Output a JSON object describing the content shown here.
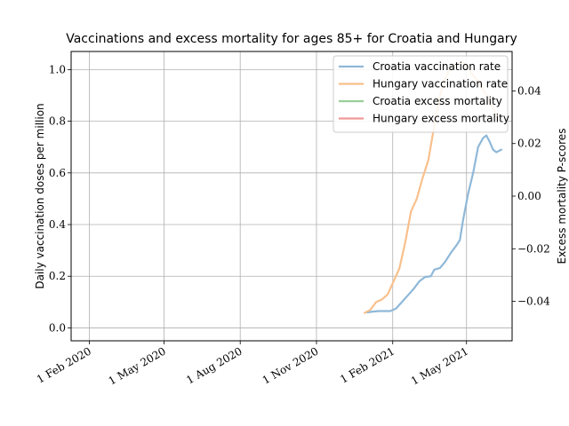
{
  "chart_data": {
    "type": "line",
    "title": "Vaccinations and excess mortality for ages 85+ for Croatia and Hungary",
    "ylabel": "Daily vaccination doses per million",
    "y2label": "Excess mortality P-scores",
    "xlim": [
      "2020-01-10",
      "2021-06-25"
    ],
    "ylim": [
      -0.05,
      1.07
    ],
    "y2lim": [
      -0.055,
      0.055
    ],
    "x_ticks": [
      {
        "date": "2020-02-01",
        "label": "1 Feb 2020"
      },
      {
        "date": "2020-05-01",
        "label": "1 May 2020"
      },
      {
        "date": "2020-08-01",
        "label": "1 Aug 2020"
      },
      {
        "date": "2020-11-01",
        "label": "1 Nov 2020"
      },
      {
        "date": "2021-02-01",
        "label": "1 Feb 2021"
      },
      {
        "date": "2021-05-01",
        "label": "1 May 2021"
      }
    ],
    "y_ticks": [
      "0.0",
      "0.2",
      "0.4",
      "0.6",
      "0.8",
      "1.0"
    ],
    "y2_ticks": [
      "−0.04",
      "−0.02",
      "0.00",
      "0.02",
      "0.04"
    ],
    "grid": true,
    "legend_position": "top-right",
    "series": [
      {
        "name": "Croatia vaccination rate",
        "color": "#8fb8d8",
        "axis": "left",
        "points": [
          [
            "2021-01-01",
            0.06
          ],
          [
            "2021-01-08",
            0.063
          ],
          [
            "2021-01-15",
            0.065
          ],
          [
            "2021-01-22",
            0.065
          ],
          [
            "2021-01-29",
            0.065
          ],
          [
            "2021-02-05",
            0.075
          ],
          [
            "2021-02-12",
            0.1
          ],
          [
            "2021-02-19",
            0.125
          ],
          [
            "2021-02-26",
            0.15
          ],
          [
            "2021-03-05",
            0.18
          ],
          [
            "2021-03-12",
            0.197
          ],
          [
            "2021-03-19",
            0.2
          ],
          [
            "2021-03-23",
            0.225
          ],
          [
            "2021-03-30",
            0.232
          ],
          [
            "2021-04-05",
            0.255
          ],
          [
            "2021-04-12",
            0.29
          ],
          [
            "2021-04-19",
            0.32
          ],
          [
            "2021-04-23",
            0.34
          ],
          [
            "2021-04-27",
            0.42
          ],
          [
            "2021-05-03",
            0.52
          ],
          [
            "2021-05-09",
            0.6
          ],
          [
            "2021-05-15",
            0.7
          ],
          [
            "2021-05-21",
            0.735
          ],
          [
            "2021-05-25",
            0.745
          ],
          [
            "2021-05-29",
            0.72
          ],
          [
            "2021-06-02",
            0.69
          ],
          [
            "2021-06-06",
            0.68
          ],
          [
            "2021-06-12",
            0.69
          ]
        ]
      },
      {
        "name": "Hungary vaccination rate",
        "color": "#f8c08c",
        "axis": "left",
        "points": [
          [
            "2020-12-29",
            0.058
          ],
          [
            "2021-01-05",
            0.07
          ],
          [
            "2021-01-12",
            0.1
          ],
          [
            "2021-01-19",
            0.11
          ],
          [
            "2021-01-26",
            0.13
          ],
          [
            "2021-02-02",
            0.18
          ],
          [
            "2021-02-09",
            0.23
          ],
          [
            "2021-02-16",
            0.33
          ],
          [
            "2021-02-23",
            0.45
          ],
          [
            "2021-03-02",
            0.5
          ],
          [
            "2021-03-09",
            0.58
          ],
          [
            "2021-03-16",
            0.65
          ],
          [
            "2021-03-23",
            0.78
          ],
          [
            "2021-03-30",
            0.9
          ],
          [
            "2021-04-06",
            0.97
          ],
          [
            "2021-04-13",
            1.01
          ],
          [
            "2021-04-20",
            1.02
          ],
          [
            "2021-04-27",
            1.03
          ],
          [
            "2021-05-04",
            1.0
          ],
          [
            "2021-05-11",
            0.97
          ],
          [
            "2021-05-18",
            0.94
          ],
          [
            "2021-05-25",
            0.9
          ],
          [
            "2021-06-01",
            0.86
          ],
          [
            "2021-06-08",
            0.81
          ]
        ]
      },
      {
        "name": "Croatia excess mortality",
        "color": "#98d098",
        "axis": "right",
        "points": []
      },
      {
        "name": "Hungary excess mortality",
        "color": "#f09898",
        "axis": "right",
        "points": []
      }
    ]
  }
}
